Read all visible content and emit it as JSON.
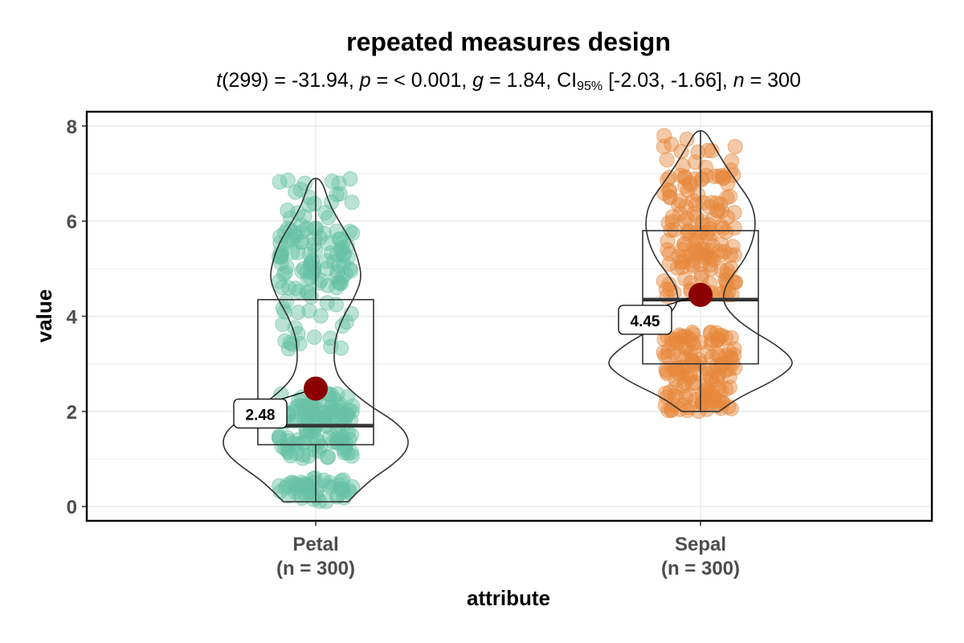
{
  "chart_data": {
    "type": "violin-box-scatter",
    "title": "repeated measures design",
    "subtitle": {
      "t_label": "t",
      "df": "(299)",
      "t_value": " = -31.94, ",
      "p_label": "p",
      "p_value": " = < 0.001, ",
      "g_label": "g",
      "g_value": " = 1.84, CI",
      "ci_sub": "95%",
      "ci_value": " [-2.03, -1.66], ",
      "n_label": "n",
      "n_value": " = 300"
    },
    "xlabel": "attribute",
    "ylabel": "value",
    "ylim": [
      -0.3,
      8.3
    ],
    "yticks": [
      "0",
      "2",
      "4",
      "6",
      "8"
    ],
    "grid": true,
    "groups": [
      {
        "name": "Petal",
        "tick_label": [
          "Petal",
          "(n = 300)"
        ],
        "color": "#66c2a5",
        "mean": 2.48,
        "mean_label": "2.48",
        "box": {
          "q1": 1.3,
          "median": 1.7,
          "q3": 4.35,
          "whisker_low": 0.1,
          "whisker_high": 6.9
        },
        "violin": [
          [
            0.1,
            0.35
          ],
          [
            0.3,
            0.45
          ],
          [
            0.6,
            0.62
          ],
          [
            0.9,
            0.85
          ],
          [
            1.2,
            1.0
          ],
          [
            1.5,
            1.0
          ],
          [
            1.8,
            0.85
          ],
          [
            2.1,
            0.6
          ],
          [
            2.4,
            0.4
          ],
          [
            2.7,
            0.25
          ],
          [
            3.0,
            0.2
          ],
          [
            3.3,
            0.2
          ],
          [
            3.6,
            0.22
          ],
          [
            4.0,
            0.3
          ],
          [
            4.4,
            0.42
          ],
          [
            4.8,
            0.5
          ],
          [
            5.2,
            0.46
          ],
          [
            5.6,
            0.38
          ],
          [
            6.0,
            0.25
          ],
          [
            6.4,
            0.14
          ],
          [
            6.9,
            0.06
          ]
        ],
        "clusters": [
          {
            "min": 0.1,
            "max": 0.6,
            "count": 48
          },
          {
            "min": 1.0,
            "max": 2.4,
            "count": 120
          },
          {
            "min": 3.3,
            "max": 4.5,
            "count": 25
          },
          {
            "min": 4.5,
            "max": 5.9,
            "count": 85
          },
          {
            "min": 5.9,
            "max": 6.9,
            "count": 22
          }
        ]
      },
      {
        "name": "Sepal",
        "tick_label": [
          "Sepal",
          "(n = 300)"
        ],
        "color": "#e6883c",
        "mean": 4.45,
        "mean_label": "4.45",
        "box": {
          "q1": 3.0,
          "median": 4.35,
          "q3": 5.8,
          "whisker_low": 2.0,
          "whisker_high": 7.9
        },
        "violin": [
          [
            2.0,
            0.2
          ],
          [
            2.3,
            0.42
          ],
          [
            2.6,
            0.75
          ],
          [
            2.9,
            0.98
          ],
          [
            3.1,
            1.0
          ],
          [
            3.4,
            0.82
          ],
          [
            3.7,
            0.55
          ],
          [
            4.0,
            0.35
          ],
          [
            4.3,
            0.24
          ],
          [
            4.6,
            0.26
          ],
          [
            4.9,
            0.36
          ],
          [
            5.2,
            0.48
          ],
          [
            5.6,
            0.57
          ],
          [
            6.0,
            0.6
          ],
          [
            6.4,
            0.55
          ],
          [
            6.8,
            0.4
          ],
          [
            7.2,
            0.26
          ],
          [
            7.6,
            0.14
          ],
          [
            7.9,
            0.05
          ]
        ],
        "clusters": [
          {
            "min": 2.0,
            "max": 3.7,
            "count": 140
          },
          {
            "min": 4.4,
            "max": 5.9,
            "count": 90
          },
          {
            "min": 5.9,
            "max": 7.0,
            "count": 55
          },
          {
            "min": 7.0,
            "max": 7.9,
            "count": 15
          }
        ]
      }
    ]
  }
}
